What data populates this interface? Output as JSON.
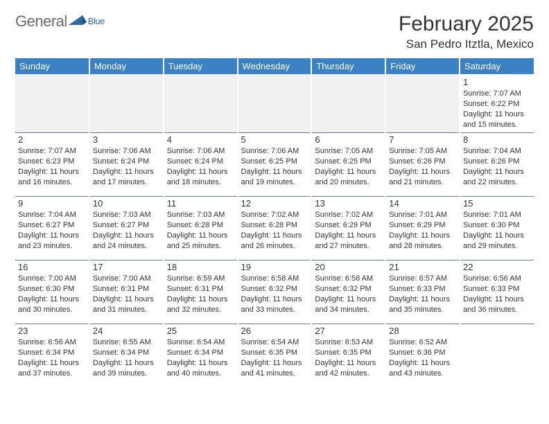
{
  "brand": {
    "part1": "General",
    "part2": "Blue"
  },
  "colors": {
    "header_bg": "#3b82c4",
    "logo_blue": "#2f6aa8",
    "rule": "#6a7a8a",
    "empty_bg": "#f0f0f0"
  },
  "title": "February 2025",
  "location": "San Pedro Itztla, Mexico",
  "day_headers": [
    "Sunday",
    "Monday",
    "Tuesday",
    "Wednesday",
    "Thursday",
    "Friday",
    "Saturday"
  ],
  "weeks": [
    [
      null,
      null,
      null,
      null,
      null,
      null,
      {
        "n": "1",
        "sr": "7:07 AM",
        "ss": "6:22 PM",
        "dl": "11 hours and 15 minutes."
      }
    ],
    [
      {
        "n": "2",
        "sr": "7:07 AM",
        "ss": "6:23 PM",
        "dl": "11 hours and 16 minutes."
      },
      {
        "n": "3",
        "sr": "7:06 AM",
        "ss": "6:24 PM",
        "dl": "11 hours and 17 minutes."
      },
      {
        "n": "4",
        "sr": "7:06 AM",
        "ss": "6:24 PM",
        "dl": "11 hours and 18 minutes."
      },
      {
        "n": "5",
        "sr": "7:06 AM",
        "ss": "6:25 PM",
        "dl": "11 hours and 19 minutes."
      },
      {
        "n": "6",
        "sr": "7:05 AM",
        "ss": "6:25 PM",
        "dl": "11 hours and 20 minutes."
      },
      {
        "n": "7",
        "sr": "7:05 AM",
        "ss": "6:26 PM",
        "dl": "11 hours and 21 minutes."
      },
      {
        "n": "8",
        "sr": "7:04 AM",
        "ss": "6:26 PM",
        "dl": "11 hours and 22 minutes."
      }
    ],
    [
      {
        "n": "9",
        "sr": "7:04 AM",
        "ss": "6:27 PM",
        "dl": "11 hours and 23 minutes."
      },
      {
        "n": "10",
        "sr": "7:03 AM",
        "ss": "6:27 PM",
        "dl": "11 hours and 24 minutes."
      },
      {
        "n": "11",
        "sr": "7:03 AM",
        "ss": "6:28 PM",
        "dl": "11 hours and 25 minutes."
      },
      {
        "n": "12",
        "sr": "7:02 AM",
        "ss": "6:28 PM",
        "dl": "11 hours and 26 minutes."
      },
      {
        "n": "13",
        "sr": "7:02 AM",
        "ss": "6:29 PM",
        "dl": "11 hours and 27 minutes."
      },
      {
        "n": "14",
        "sr": "7:01 AM",
        "ss": "6:29 PM",
        "dl": "11 hours and 28 minutes."
      },
      {
        "n": "15",
        "sr": "7:01 AM",
        "ss": "6:30 PM",
        "dl": "11 hours and 29 minutes."
      }
    ],
    [
      {
        "n": "16",
        "sr": "7:00 AM",
        "ss": "6:30 PM",
        "dl": "11 hours and 30 minutes."
      },
      {
        "n": "17",
        "sr": "7:00 AM",
        "ss": "6:31 PM",
        "dl": "11 hours and 31 minutes."
      },
      {
        "n": "18",
        "sr": "6:59 AM",
        "ss": "6:31 PM",
        "dl": "11 hours and 32 minutes."
      },
      {
        "n": "19",
        "sr": "6:58 AM",
        "ss": "6:32 PM",
        "dl": "11 hours and 33 minutes."
      },
      {
        "n": "20",
        "sr": "6:58 AM",
        "ss": "6:32 PM",
        "dl": "11 hours and 34 minutes."
      },
      {
        "n": "21",
        "sr": "6:57 AM",
        "ss": "6:33 PM",
        "dl": "11 hours and 35 minutes."
      },
      {
        "n": "22",
        "sr": "6:56 AM",
        "ss": "6:33 PM",
        "dl": "11 hours and 36 minutes."
      }
    ],
    [
      {
        "n": "23",
        "sr": "6:56 AM",
        "ss": "6:34 PM",
        "dl": "11 hours and 37 minutes."
      },
      {
        "n": "24",
        "sr": "6:55 AM",
        "ss": "6:34 PM",
        "dl": "11 hours and 39 minutes."
      },
      {
        "n": "25",
        "sr": "6:54 AM",
        "ss": "6:34 PM",
        "dl": "11 hours and 40 minutes."
      },
      {
        "n": "26",
        "sr": "6:54 AM",
        "ss": "6:35 PM",
        "dl": "11 hours and 41 minutes."
      },
      {
        "n": "27",
        "sr": "6:53 AM",
        "ss": "6:35 PM",
        "dl": "11 hours and 42 minutes."
      },
      {
        "n": "28",
        "sr": "6:52 AM",
        "ss": "6:36 PM",
        "dl": "11 hours and 43 minutes."
      },
      null
    ]
  ],
  "labels": {
    "sunrise": "Sunrise:",
    "sunset": "Sunset:",
    "daylight": "Daylight:"
  }
}
